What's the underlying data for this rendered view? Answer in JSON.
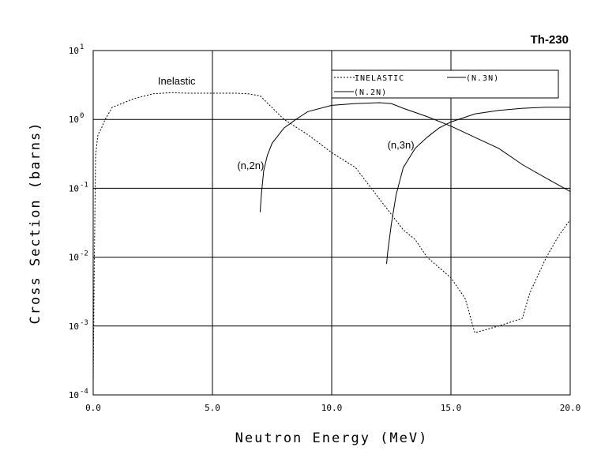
{
  "chart_data": {
    "type": "line",
    "title": "Th-230",
    "xlabel": "Neutron Energy (MeV)",
    "ylabel": "Cross Section (barns)",
    "xlim": [
      0,
      20
    ],
    "ylim_log10": [
      -4,
      1
    ],
    "y_scale": "log",
    "grid": true,
    "x_ticks": [
      "0.0",
      "5.0",
      "10.0",
      "15.0",
      "20.0"
    ],
    "x_tick_values": [
      0,
      5,
      10,
      15,
      20
    ],
    "y_tick_exponents": [
      1,
      0,
      -1,
      -2,
      -3,
      -4
    ],
    "y_tick_base": "10",
    "legend": {
      "placement": "top-right",
      "entries": [
        "INELASTIC",
        "(N.3N)",
        "(N.2N)"
      ]
    },
    "annotations": [
      {
        "text": "Inelastic",
        "x": 3.5,
        "y": 3.2
      },
      {
        "text": "(n,2n)",
        "x": 6.6,
        "y": 0.19
      },
      {
        "text": "(n,3n)",
        "x": 12.9,
        "y": 0.38
      }
    ],
    "series": [
      {
        "name": "INELASTIC",
        "style": "dashed",
        "x": [
          0.0,
          0.05,
          0.1,
          0.2,
          0.35,
          0.5,
          0.8,
          1.2,
          1.7,
          2.5,
          3.3,
          4.0,
          5.0,
          6.0,
          6.5,
          7.0,
          8.0,
          9.0,
          10.0,
          11.0,
          12.0,
          13.0,
          13.5,
          14.0,
          15.0,
          15.6,
          16.0,
          17.0,
          18.0,
          18.3,
          19.0,
          19.5,
          20.0
        ],
        "y": [
          0.00015,
          0.01,
          0.3,
          0.6,
          0.75,
          1.0,
          1.5,
          1.7,
          2.0,
          2.35,
          2.45,
          2.4,
          2.4,
          2.4,
          2.35,
          2.2,
          1.0,
          0.6,
          0.33,
          0.2,
          0.07,
          0.025,
          0.018,
          0.01,
          0.005,
          0.0025,
          0.0008,
          0.001,
          0.0013,
          0.003,
          0.01,
          0.02,
          0.035
        ]
      },
      {
        "name": "(N.2N)",
        "style": "solid",
        "x": [
          7.0,
          7.05,
          7.15,
          7.3,
          7.5,
          8.0,
          8.5,
          9.0,
          10.0,
          11.0,
          12.0,
          12.5,
          13.0,
          14.0,
          15.0,
          16.0,
          17.0,
          18.0,
          19.0,
          20.0
        ],
        "y": [
          0.045,
          0.08,
          0.18,
          0.3,
          0.45,
          0.75,
          1.0,
          1.3,
          1.6,
          1.7,
          1.75,
          1.7,
          1.45,
          1.1,
          0.8,
          0.55,
          0.38,
          0.22,
          0.14,
          0.09
        ]
      },
      {
        "name": "(N.3N)",
        "style": "solid",
        "x": [
          12.3,
          12.35,
          12.5,
          12.7,
          13.0,
          13.5,
          14.0,
          14.5,
          15.0,
          15.5,
          16.0,
          17.0,
          18.0,
          19.0,
          20.0
        ],
        "y": [
          0.008,
          0.012,
          0.03,
          0.08,
          0.2,
          0.38,
          0.55,
          0.75,
          0.92,
          1.05,
          1.2,
          1.35,
          1.45,
          1.5,
          1.5
        ]
      }
    ]
  }
}
